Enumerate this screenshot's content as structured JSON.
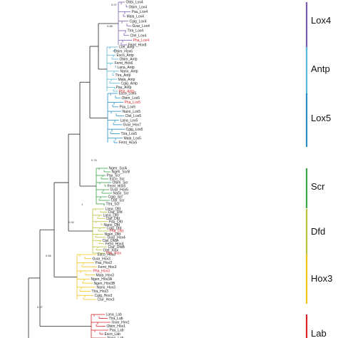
{
  "clades": [
    {
      "name": "Lox4",
      "color": "#7b5cb0",
      "label_color": "#111111"
    },
    {
      "name": "Antp",
      "color": "#5bb7d6",
      "label_color": "#111111"
    },
    {
      "name": "Lox5",
      "color": "#2a8fc4",
      "label_color": "#111111"
    },
    {
      "name": "Scr",
      "color": "#3aa44a",
      "label_color": "#111111"
    },
    {
      "name": "Dfd",
      "color": "#b9c23a",
      "label_color": "#111111"
    },
    {
      "name": "Hox3",
      "color": "#f0c419",
      "label_color": "#111111"
    },
    {
      "name": "Lab",
      "color": "#d8232a",
      "label_color": "#111111"
    }
  ],
  "tips": [
    {
      "label": "Obbi_Lox4",
      "clade": "Lox4"
    },
    {
      "label": "Obim_Lox4",
      "clade": "Lox4"
    },
    {
      "label": "Pau_Lox4",
      "clade": "Lox4"
    },
    {
      "label": "Mala_Lox4",
      "clade": "Lox4"
    },
    {
      "label": "Cgig_Lox4",
      "clade": "Lox4"
    },
    {
      "label": "Gvar_Lox4",
      "clade": "Lox4"
    },
    {
      "label": "Ttra_Lox4",
      "clade": "Lox4"
    },
    {
      "label": "Ctel_Lox4",
      "clade": "Lox4"
    },
    {
      "label": "Pha_Lox4",
      "clade": "Lox4",
      "highlight": true
    },
    {
      "label": "Femt_Hox8",
      "clade": "Lox4"
    },
    {
      "label": "Ctel_Antp",
      "clade": "Antp"
    },
    {
      "label": "Obim_Hox6",
      "clade": "Antp"
    },
    {
      "label": "Esco_Antp",
      "clade": "Antp"
    },
    {
      "label": "Obim_Antp",
      "clade": "Antp"
    },
    {
      "label": "Femt_Hox6",
      "clade": "Antp"
    },
    {
      "label": "Lana_Antp",
      "clade": "Antp"
    },
    {
      "label": "Nano_Antp",
      "clade": "Antp"
    },
    {
      "label": "Ttra_Antp",
      "clade": "Antp"
    },
    {
      "label": "Mala_Antp",
      "clade": "Antp"
    },
    {
      "label": "Cgig_Antp",
      "clade": "Antp"
    },
    {
      "label": "Pau_Antp",
      "clade": "Antp"
    },
    {
      "label": "Pha_Antp",
      "clade": "Antp",
      "highlight": true
    },
    {
      "label": "Esco_Lox5",
      "clade": "Lox5"
    },
    {
      "label": "Obim_Lox5",
      "clade": "Lox5"
    },
    {
      "label": "Pha_Lox5",
      "clade": "Lox5",
      "highlight": true
    },
    {
      "label": "Pau_Lox5",
      "clade": "Lox5"
    },
    {
      "label": "Nano_Lox5",
      "clade": "Lox5"
    },
    {
      "label": "Ctel_Lox5",
      "clade": "Lox5"
    },
    {
      "label": "Lana_Lox5",
      "clade": "Lox5"
    },
    {
      "label": "Gvar_Hox7",
      "clade": "Lox5"
    },
    {
      "label": "Cgig_Lox5",
      "clade": "Lox5"
    },
    {
      "label": "Ttra_Lox5",
      "clade": "Lox5"
    },
    {
      "label": "Mala_Lox5",
      "clade": "Lox5"
    },
    {
      "label": "Femt_Hox5",
      "clade": "Lox5"
    },
    {
      "label": "Ngen_ScrA",
      "clade": "Scr"
    },
    {
      "label": "Ngen_ScrB",
      "clade": "Scr"
    },
    {
      "label": "Pau_Scr",
      "clade": "Scr"
    },
    {
      "label": "Esco_Scr",
      "clade": "Scr"
    },
    {
      "label": "Obim_Scr",
      "clade": "Scr"
    },
    {
      "label": "Femt_Hox5",
      "clade": "Scr"
    },
    {
      "label": "Gvar_Hox5",
      "clade": "Scr"
    },
    {
      "label": "Nano_Scr",
      "clade": "Scr"
    },
    {
      "label": "Cgig_Scr",
      "clade": "Scr"
    },
    {
      "label": "Ctel_Scr",
      "clade": "Scr"
    },
    {
      "label": "Ttra_Scr",
      "clade": "Scr"
    },
    {
      "label": "Lana_Dfd",
      "clade": "Dfd"
    },
    {
      "label": "Ctur_Dfd",
      "clade": "Dfd"
    },
    {
      "label": "Lana_Dfd",
      "clade": "Dfd"
    },
    {
      "label": "Ctel_Dfd",
      "clade": "Dfd"
    },
    {
      "label": "Pau_Dfd",
      "clade": "Dfd"
    },
    {
      "label": "Nano_Dfd",
      "clade": "Dfd"
    },
    {
      "label": "Cgig_Dfd",
      "clade": "Dfd"
    },
    {
      "label": "Pha_Dfd",
      "clade": "Dfd",
      "highlight": true
    },
    {
      "label": "Ngen_Dfd",
      "clade": "Dfd"
    },
    {
      "label": "Gvar_Hox4",
      "clade": "Dfd"
    },
    {
      "label": "Ctel_DfdA",
      "clade": "Dfd"
    },
    {
      "label": "Femt_Hox4",
      "clade": "Dfd"
    },
    {
      "label": "Ctur_DfdB",
      "clade": "Dfd"
    },
    {
      "label": "Ctel_Xlox",
      "clade": "Dfd"
    },
    {
      "label": "Pha_Xlox",
      "clade": "Dfd",
      "highlight": true
    },
    {
      "label": "Esco_Hox3",
      "clade": "Hox3"
    },
    {
      "label": "Gvar_Hox3",
      "clade": "Hox3"
    },
    {
      "label": "Pau_Hox3",
      "clade": "Hox3"
    },
    {
      "label": "Femt_Hox3",
      "clade": "Hox3"
    },
    {
      "label": "Pha_Hox3",
      "clade": "Hox3",
      "highlight": true
    },
    {
      "label": "Mala_Hox3",
      "clade": "Hox3"
    },
    {
      "label": "Ngen_Hox3A",
      "clade": "Hox3"
    },
    {
      "label": "Ngen_Hox3B",
      "clade": "Hox3"
    },
    {
      "label": "Nano_Hox3",
      "clade": "Hox3"
    },
    {
      "label": "Ttra_Hox3",
      "clade": "Hox3"
    },
    {
      "label": "Cgig_Hox3",
      "clade": "Hox3"
    },
    {
      "label": "Ctur_Hox3",
      "clade": "Hox3"
    },
    {
      "label": "Lana_Lab",
      "clade": "Lab"
    },
    {
      "label": "Ttra_Lab",
      "clade": "Lab"
    },
    {
      "label": "Gvar_Hox1",
      "clade": "Lab"
    },
    {
      "label": "Obim_Hox1",
      "clade": "Lab"
    },
    {
      "label": "Pau_Lab",
      "clade": "Lab"
    },
    {
      "label": "Esco_Lab",
      "clade": "Lab"
    },
    {
      "label": "Nano_Lab",
      "clade": "Lab"
    }
  ],
  "support_values": [
    {
      "value": "0.97",
      "clade": "Lox4"
    },
    {
      "value": "0.88",
      "clade": "Lox4"
    },
    {
      "value": "0.76",
      "clade": "Scr"
    },
    {
      "value": "1",
      "clade": "Dfd"
    },
    {
      "value": "0.92",
      "clade": "Dfd"
    },
    {
      "value": "0.56",
      "clade": "Hox3"
    },
    {
      "value": "0.97",
      "clade": "Lab"
    }
  ]
}
